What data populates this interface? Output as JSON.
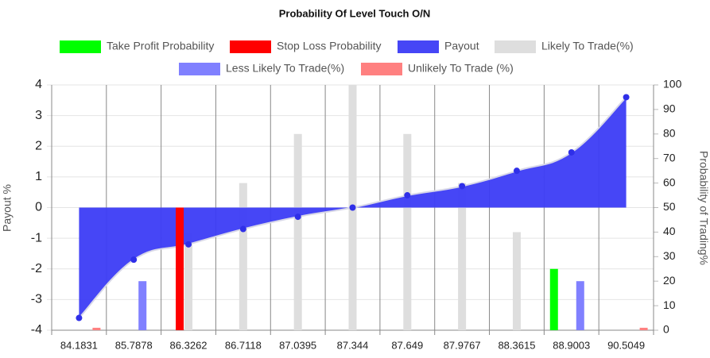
{
  "chart_data": {
    "type": "bar",
    "title": "Probability Of Level Touch  O/N",
    "y_label": "Payout %",
    "y2_label": "Probability of Trading%",
    "categories": [
      "84.1831",
      "85.7878",
      "86.3262",
      "86.7118",
      "87.0395",
      "87.344",
      "87.649",
      "87.9767",
      "88.3615",
      "88.9003",
      "90.5049"
    ],
    "ylim": [
      -4,
      4
    ],
    "yticks": [
      -4,
      -3,
      -2,
      -1,
      0,
      1,
      2,
      3,
      4
    ],
    "y2lim": [
      0,
      100
    ],
    "y2ticks": [
      0,
      10,
      20,
      30,
      40,
      50,
      60,
      70,
      80,
      90,
      100
    ],
    "grid": true,
    "series": [
      {
        "name": "Take Profit Probability",
        "type": "bar",
        "axis": "y2",
        "color": "#00ff00",
        "values": [
          null,
          null,
          null,
          null,
          null,
          null,
          null,
          null,
          null,
          25,
          null
        ]
      },
      {
        "name": "Stop Loss Probability",
        "type": "bar",
        "axis": "y2",
        "color": "#ff0000",
        "values": [
          null,
          null,
          50,
          null,
          null,
          null,
          null,
          null,
          null,
          null,
          null
        ]
      },
      {
        "name": "Payout",
        "type": "line",
        "color": "#3c3cf5",
        "values": [
          -3.6,
          -1.7,
          -1.2,
          -0.7,
          -0.3,
          0,
          0.4,
          0.7,
          1.2,
          1.8,
          3.6
        ]
      },
      {
        "name": "Likely To Trade(%)",
        "type": "bar",
        "axis": "y2",
        "color": "#dedede",
        "values": [
          null,
          null,
          40,
          60,
          80,
          100,
          80,
          60,
          40,
          null,
          null
        ]
      },
      {
        "name": "Less Likely To Trade(%)",
        "type": "bar",
        "axis": "y2",
        "color": "#8080ff",
        "values": [
          null,
          20,
          null,
          null,
          null,
          null,
          null,
          null,
          null,
          20,
          null
        ]
      },
      {
        "name": "Unlikely To Trade (%)",
        "type": "bar",
        "axis": "y2",
        "color": "#ff8080",
        "values": [
          1,
          null,
          null,
          null,
          null,
          null,
          null,
          null,
          null,
          null,
          1
        ]
      }
    ]
  }
}
